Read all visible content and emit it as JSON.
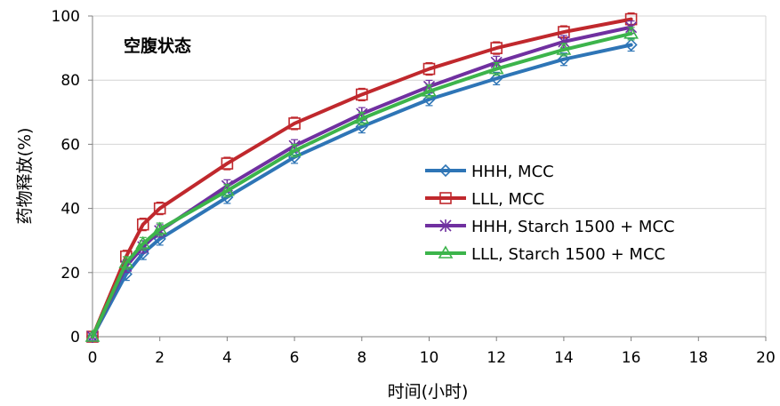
{
  "chart_data": {
    "type": "line",
    "annotation": "空腹状态",
    "xlabel": "时间(小时)",
    "ylabel": "药物释放(%)",
    "xlim": [
      0,
      20
    ],
    "ylim": [
      0,
      100
    ],
    "xticks": [
      0,
      2,
      4,
      6,
      8,
      10,
      12,
      14,
      16,
      18,
      20
    ],
    "yticks": [
      0,
      20,
      40,
      60,
      80,
      100
    ],
    "grid": "horizontal",
    "legend_position": "center-right",
    "series": [
      {
        "name": "HHH, MCC",
        "color": "#2E75B6",
        "marker": "diamond",
        "x": [
          0,
          1,
          1.5,
          2,
          4,
          6,
          8,
          10,
          12,
          14,
          16
        ],
        "y": [
          0,
          19.5,
          26,
          30.5,
          43.5,
          56,
          65.5,
          74,
          80.5,
          86.5,
          91
        ]
      },
      {
        "name": "LLL, MCC",
        "color": "#C0282D",
        "marker": "square",
        "x": [
          0,
          1,
          1.5,
          2,
          4,
          6,
          8,
          10,
          12,
          14,
          16
        ],
        "y": [
          0,
          25,
          35,
          40,
          54,
          66.5,
          75.5,
          83.5,
          90,
          95,
          99
        ]
      },
      {
        "name": "HHH, Starch 1500 + MCC",
        "color": "#7030A0",
        "marker": "asterisk",
        "x": [
          0,
          1,
          1.5,
          2,
          4,
          6,
          8,
          10,
          12,
          14,
          16
        ],
        "y": [
          0,
          22,
          28,
          33,
          47,
          59.5,
          69.5,
          78,
          85.5,
          92,
          96.5
        ]
      },
      {
        "name": "LLL, Starch 1500 + MCC",
        "color": "#3CB44B",
        "marker": "triangle",
        "x": [
          0,
          1,
          1.5,
          2,
          4,
          6,
          8,
          10,
          12,
          14,
          16
        ],
        "y": [
          0,
          23,
          29,
          33.5,
          45.5,
          58,
          68,
          76.5,
          83.5,
          89.5,
          94.5
        ]
      }
    ]
  }
}
